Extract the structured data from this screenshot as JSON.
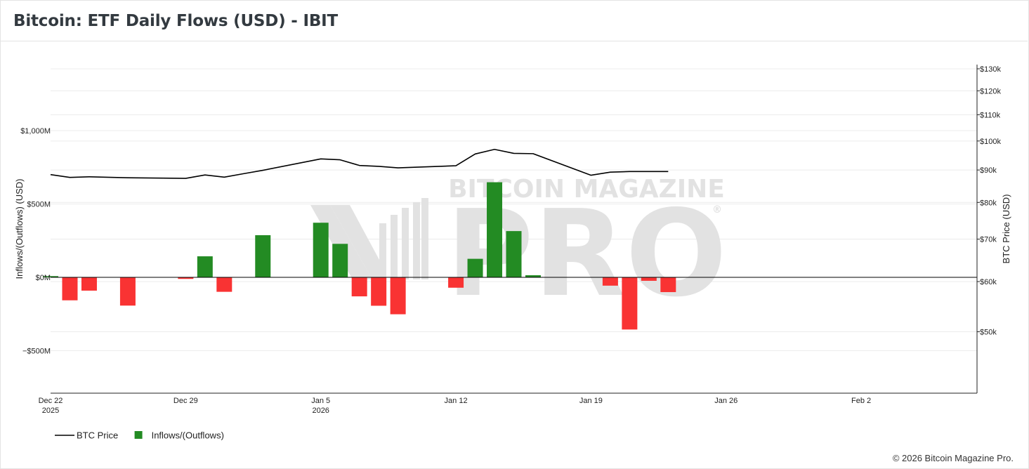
{
  "header": {
    "title": "Bitcoin: ETF Daily Flows (USD) - IBIT"
  },
  "footer": {
    "copyright": "© 2026 Bitcoin Magazine Pro."
  },
  "watermark": {
    "top": "BITCOIN MAGAZINE",
    "bottom": "PRO",
    "reg": "®"
  },
  "colors": {
    "inflow": "#238b23",
    "outflow": "#f93333",
    "price": "#000000",
    "grid": "#ececec"
  },
  "chart_data": {
    "type": "bar",
    "x_dates": [
      "2025-12-22",
      "2025-12-23",
      "2025-12-24",
      "2025-12-25",
      "2025-12-26",
      "2025-12-29",
      "2025-12-30",
      "2025-12-31",
      "2026-01-01",
      "2026-01-02",
      "2026-01-05",
      "2026-01-06",
      "2026-01-07",
      "2026-01-08",
      "2026-01-09",
      "2026-01-12",
      "2026-01-13",
      "2026-01-14",
      "2026-01-15",
      "2026-01-16",
      "2026-01-19",
      "2026-01-20",
      "2026-01-21",
      "2026-01-22",
      "2026-01-23"
    ],
    "series": [
      {
        "name": "Inflows/(Outflows)",
        "axis": "left",
        "type": "bar",
        "dates": [
          "2025-12-22",
          "2025-12-23",
          "2025-12-24",
          "2025-12-26",
          "2025-12-29",
          "2025-12-30",
          "2025-12-31",
          "2026-01-02",
          "2026-01-05",
          "2026-01-06",
          "2026-01-07",
          "2026-01-08",
          "2026-01-09",
          "2026-01-12",
          "2026-01-13",
          "2026-01-14",
          "2026-01-15",
          "2026-01-16",
          "2026-01-20",
          "2026-01-21",
          "2026-01-22",
          "2026-01-23"
        ],
        "values": [
          8,
          -157,
          -91,
          -193,
          -11,
          143,
          -99,
          287,
          372,
          228,
          -130,
          -194,
          -252,
          -71,
          126,
          648,
          315,
          14,
          -57,
          -356,
          -24,
          -101
        ]
      },
      {
        "name": "BTC Price",
        "axis": "right",
        "type": "line",
        "dates": [
          "2025-12-22",
          "2025-12-23",
          "2025-12-24",
          "2025-12-26",
          "2025-12-29",
          "2025-12-30",
          "2025-12-31",
          "2026-01-01",
          "2026-01-02",
          "2026-01-05",
          "2026-01-06",
          "2026-01-07",
          "2026-01-08",
          "2026-01-09",
          "2026-01-12",
          "2026-01-13",
          "2026-01-14",
          "2026-01-15",
          "2026-01-16",
          "2026-01-19",
          "2026-01-20",
          "2026-01-21",
          "2026-01-22",
          "2026-01-23"
        ],
        "values": [
          88500,
          87600,
          87800,
          87500,
          87300,
          88400,
          87700,
          88800,
          89900,
          93700,
          93400,
          91500,
          91200,
          90700,
          91400,
          95400,
          97000,
          95600,
          95500,
          88300,
          89300,
          89500,
          89500,
          89500
        ]
      }
    ],
    "x_ticks": [
      {
        "date": "2025-12-22",
        "label": "Dec 22",
        "sublabel": "2025"
      },
      {
        "date": "2025-12-29",
        "label": "Dec 29",
        "sublabel": ""
      },
      {
        "date": "2026-01-05",
        "label": "Jan 5",
        "sublabel": "2026"
      },
      {
        "date": "2026-01-12",
        "label": "Jan 12",
        "sublabel": ""
      },
      {
        "date": "2026-01-19",
        "label": "Jan 19",
        "sublabel": ""
      },
      {
        "date": "2026-01-26",
        "label": "Jan 26",
        "sublabel": ""
      },
      {
        "date": "2026-02-02",
        "label": "Feb 2",
        "sublabel": ""
      }
    ],
    "x_range": [
      "2025-12-22",
      "2026-02-08"
    ],
    "y_left": {
      "label": "Inflows/(Outflows) (USD)",
      "range": [
        -790,
        1450
      ],
      "ticks": [
        {
          "value": 1000,
          "label": "$1,000M"
        },
        {
          "value": 500,
          "label": "$500M"
        },
        {
          "value": 0,
          "label": "$0M"
        },
        {
          "value": -500,
          "label": "−$500M"
        }
      ]
    },
    "y_right": {
      "label": "BTC Price (USD)",
      "scale": "log",
      "range": [
        40000,
        132000
      ],
      "ticks": [
        {
          "value": 130000,
          "label": "$130k"
        },
        {
          "value": 120000,
          "label": "$120k"
        },
        {
          "value": 110000,
          "label": "$110k"
        },
        {
          "value": 100000,
          "label": "$100k"
        },
        {
          "value": 90000,
          "label": "$90k"
        },
        {
          "value": 80000,
          "label": "$80k"
        },
        {
          "value": 70000,
          "label": "$70k"
        },
        {
          "value": 60000,
          "label": "$60k"
        },
        {
          "value": 50000,
          "label": "$50k"
        }
      ]
    },
    "legend": {
      "placement": "bottom-left",
      "items": [
        {
          "label": "BTC Price",
          "kind": "line"
        },
        {
          "label": "Inflows/(Outflows)",
          "kind": "bar"
        }
      ]
    }
  }
}
